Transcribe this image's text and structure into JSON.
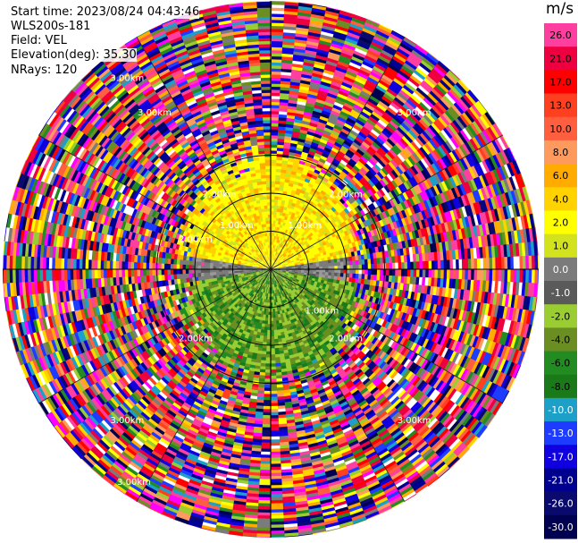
{
  "info": {
    "start_time": "Start time: 2023/08/24 04:43:46",
    "instrument": "WLS200s-181",
    "field": "Field: VEL",
    "elevation": "Elevation(deg): 35.30",
    "nrays": "NRays: 120"
  },
  "chart_data": {
    "type": "heatmap",
    "projection": "polar-ppi",
    "grid": true,
    "range_rings_km": [
      1.0,
      2.0,
      3.0
    ],
    "range_labels": [
      "1.00km",
      "1.00km",
      "1.00km",
      "2.00km",
      "2.00km",
      "2.00km",
      "2.00km",
      "2.00km",
      "3.00km",
      "3.00km",
      "3.00km",
      "3.00km",
      "3.00km",
      "3.00km"
    ],
    "nrays": 120,
    "colorbar": {
      "unit": "m/s",
      "ticks": [
        "26.0",
        "21.0",
        "17.0",
        "13.0",
        "10.0",
        "8.0",
        "6.0",
        "4.0",
        "2.0",
        "1.0",
        "0.0",
        "-1.0",
        "-2.0",
        "-4.0",
        "-6.0",
        "-8.0",
        "-10.0",
        "-13.0",
        "-17.0",
        "-21.0",
        "-26.0",
        "-30.0"
      ],
      "colors": [
        "#ff3fa0",
        "#ee0040",
        "#ff0000",
        "#ff4020",
        "#ff5f3f",
        "#ff9a5f",
        "#ffab00",
        "#ffd200",
        "#ffff00",
        "#d2e31e",
        "#7b7b7b",
        "#5a5a5a",
        "#9acd32",
        "#6b8e23",
        "#228b22",
        "#1a7a1a",
        "#1ca0c8",
        "#1e3cff",
        "#1000e0",
        "#000090",
        "#0a0a6e",
        "#000050"
      ]
    },
    "near_range_pattern": {
      "north": "positive (yellow/orange, 2 to 6 m/s)",
      "south": "negative (green/olive, -1 to -6 m/s)",
      "east_west": "near zero (gray)"
    }
  }
}
